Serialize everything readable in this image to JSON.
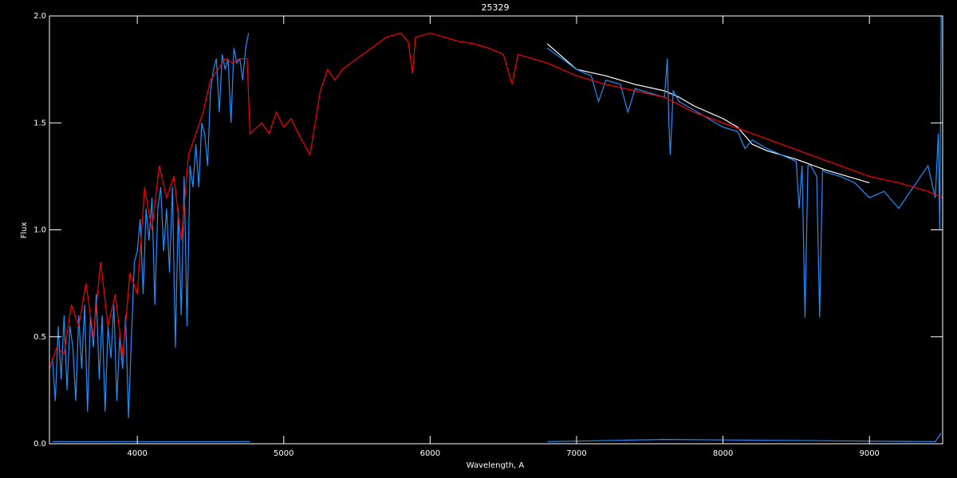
{
  "chart_data": {
    "type": "line",
    "title": "25329",
    "x_label": "Wavelength, A",
    "y_label": "Flux",
    "xlim": [
      3400,
      9500
    ],
    "ylim": [
      0,
      2
    ],
    "xticks": [
      4000,
      5000,
      6000,
      7000,
      8000,
      9000
    ],
    "yticks": [
      {
        "value": 0,
        "label": "0.0"
      },
      0.5,
      {
        "value": 1,
        "label": "1.0"
      },
      1.5,
      {
        "value": 2,
        "label": "2.0"
      }
    ],
    "series": [
      {
        "color": "#ffffff",
        "x": [
          6800,
          7000,
          7200,
          7400,
          7600,
          7700,
          7800,
          8000,
          8100,
          8200,
          8300,
          8500,
          8700,
          9000
        ],
        "values": [
          1.87,
          1.75,
          1.72,
          1.68,
          1.65,
          1.62,
          1.58,
          1.52,
          1.48,
          1.4,
          1.37,
          1.33,
          1.28,
          1.22
        ]
      },
      {
        "color": "#1e90ff",
        "x": [
          3420,
          3440,
          3460,
          3480,
          3500,
          3520,
          3540,
          3560,
          3580,
          3600,
          3620,
          3640,
          3660,
          3680,
          3700,
          3720,
          3740,
          3760,
          3780,
          3800,
          3820,
          3840,
          3860,
          3880,
          3900,
          3920,
          3940,
          3960,
          3980,
          4000,
          4020,
          4040,
          4060,
          4080,
          4100,
          4120,
          4140,
          4160,
          4180,
          4200,
          4220,
          4240,
          4260,
          4280,
          4300,
          4320,
          4340,
          4360,
          4380,
          4400,
          4420,
          4440,
          4460,
          4480,
          4500,
          4520,
          4540,
          4560,
          4580,
          4600,
          4620,
          4640,
          4660,
          4680,
          4700,
          4720,
          4740,
          4760,
          5500,
          6800,
          6900,
          7000,
          7100,
          7150,
          7200,
          7300,
          7350,
          7400,
          7500,
          7600,
          7620,
          7630,
          7640,
          7660,
          7700,
          7800,
          7900,
          8000,
          8100,
          8150,
          8200,
          8300,
          8400,
          8500,
          8520,
          8540,
          8560,
          8580,
          8600,
          8640,
          8660,
          8680,
          8700,
          8800,
          8900,
          9000,
          9100,
          9200,
          9300,
          9400,
          9450,
          9470,
          9480,
          9490
        ],
        "values": [
          0.4,
          0.2,
          0.55,
          0.3,
          0.6,
          0.25,
          0.55,
          0.45,
          0.2,
          0.6,
          0.35,
          0.65,
          0.15,
          0.6,
          0.45,
          0.7,
          0.3,
          0.6,
          0.15,
          0.55,
          0.4,
          0.65,
          0.2,
          0.5,
          0.35,
          0.6,
          0.12,
          0.5,
          0.85,
          0.9,
          1.05,
          0.7,
          1.1,
          0.95,
          1.15,
          0.65,
          1.1,
          1.2,
          0.9,
          1.1,
          0.8,
          1.2,
          0.45,
          1.1,
          0.6,
          1.25,
          0.55,
          1.3,
          1.2,
          1.4,
          1.2,
          1.5,
          1.45,
          1.3,
          1.65,
          1.75,
          1.8,
          1.55,
          1.82,
          1.75,
          1.8,
          1.5,
          1.85,
          1.78,
          1.8,
          1.7,
          1.85,
          1.92,
          null,
          1.85,
          1.8,
          1.75,
          1.72,
          1.6,
          1.7,
          1.68,
          1.55,
          1.66,
          1.64,
          1.62,
          1.8,
          1.5,
          1.35,
          1.65,
          1.6,
          1.56,
          1.52,
          1.48,
          1.46,
          1.38,
          1.42,
          1.38,
          1.35,
          1.32,
          1.1,
          1.3,
          0.59,
          1.3,
          1.3,
          1.25,
          0.59,
          1.28,
          1.27,
          1.25,
          1.22,
          1.15,
          1.18,
          1.1,
          1.2,
          1.3,
          1.15,
          1.45,
          1.0,
          2.0
        ]
      },
      {
        "color": "#ff0000",
        "x": [
          3400,
          3450,
          3500,
          3550,
          3600,
          3650,
          3700,
          3750,
          3800,
          3850,
          3900,
          3950,
          4000,
          4050,
          4100,
          4150,
          4200,
          4250,
          4300,
          4350,
          4400,
          4450,
          4500,
          4550,
          4600,
          4650,
          4700,
          4750,
          4770,
          4850,
          4900,
          4950,
          5000,
          5050,
          5100,
          5180,
          5250,
          5300,
          5350,
          5400,
          5500,
          5600,
          5700,
          5800,
          5850,
          5880,
          5900,
          6000,
          6100,
          6200,
          6300,
          6400,
          6500,
          6560,
          6600,
          6700,
          6800,
          7000,
          7200,
          7400,
          7600,
          7800,
          8000,
          8200,
          8400,
          8600,
          8800,
          9000,
          9200,
          9400,
          9500
        ],
        "values": [
          0.35,
          0.45,
          0.42,
          0.65,
          0.55,
          0.75,
          0.5,
          0.85,
          0.55,
          0.7,
          0.4,
          0.8,
          0.7,
          1.2,
          1.0,
          1.3,
          1.15,
          1.25,
          0.95,
          1.35,
          1.45,
          1.55,
          1.7,
          1.75,
          1.8,
          1.78,
          1.8,
          1.8,
          1.45,
          1.5,
          1.45,
          1.55,
          1.48,
          1.52,
          1.45,
          1.35,
          1.65,
          1.75,
          1.7,
          1.75,
          1.8,
          1.85,
          1.9,
          1.92,
          1.88,
          1.73,
          1.9,
          1.92,
          1.9,
          1.88,
          1.87,
          1.85,
          1.82,
          1.68,
          1.82,
          1.8,
          1.78,
          1.72,
          1.68,
          1.65,
          1.62,
          1.55,
          1.5,
          1.45,
          1.4,
          1.35,
          1.3,
          1.25,
          1.22,
          1.18,
          1.15
        ]
      },
      {
        "color": "#1e90ff",
        "x": [
          3420,
          4770,
          5500,
          6800,
          7600,
          9450,
          9490
        ],
        "values": [
          0.01,
          0.01,
          null,
          0.01,
          0.02,
          0.01,
          0.05
        ]
      }
    ]
  }
}
